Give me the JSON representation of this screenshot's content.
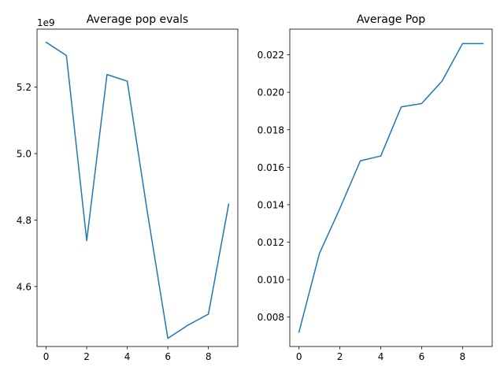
{
  "chart_data": [
    {
      "type": "line",
      "title": "Average pop evals",
      "xlabel": "",
      "ylabel": "",
      "offset_text": "1e9",
      "x": [
        0,
        1,
        2,
        3,
        4,
        5,
        6,
        7,
        8,
        9
      ],
      "series": [
        {
          "values": [
            5335000000,
            5295000000,
            4738000000,
            5238000000,
            5218000000,
            4820000000,
            4444000000,
            4484000000,
            4517000000,
            4848000000
          ]
        }
      ],
      "xlim": [
        -0.45,
        9.45
      ],
      "ylim": [
        4.4195,
        5.3745
      ],
      "xticks": [
        0,
        2,
        4,
        6,
        8
      ],
      "xtick_labels": [
        "0",
        "2",
        "4",
        "6",
        "8"
      ],
      "yticks": [
        4.6,
        4.8,
        5.0,
        5.2
      ],
      "ytick_labels": [
        "4.6",
        "4.8",
        "5.0",
        "5.2"
      ],
      "grid": false,
      "color": "#1f77b4"
    },
    {
      "type": "line",
      "title": "Average Pop",
      "xlabel": "",
      "ylabel": "",
      "x": [
        0,
        1,
        2,
        3,
        4,
        5,
        6,
        7,
        8,
        9
      ],
      "series": [
        {
          "values": [
            0.0072,
            0.0114,
            0.0138,
            0.01634,
            0.0166,
            0.01922,
            0.0194,
            0.0206,
            0.0226,
            0.0226
          ]
        }
      ],
      "xlim": [
        -0.45,
        9.45
      ],
      "ylim": [
        0.00643,
        0.02337
      ],
      "xticks": [
        0,
        2,
        4,
        6,
        8
      ],
      "xtick_labels": [
        "0",
        "2",
        "4",
        "6",
        "8"
      ],
      "yticks": [
        0.008,
        0.01,
        0.012,
        0.014,
        0.016,
        0.018,
        0.02,
        0.022
      ],
      "ytick_labels": [
        "0.008",
        "0.010",
        "0.012",
        "0.014",
        "0.016",
        "0.018",
        "0.020",
        "0.022"
      ],
      "grid": false,
      "color": "#1f77b4"
    }
  ]
}
